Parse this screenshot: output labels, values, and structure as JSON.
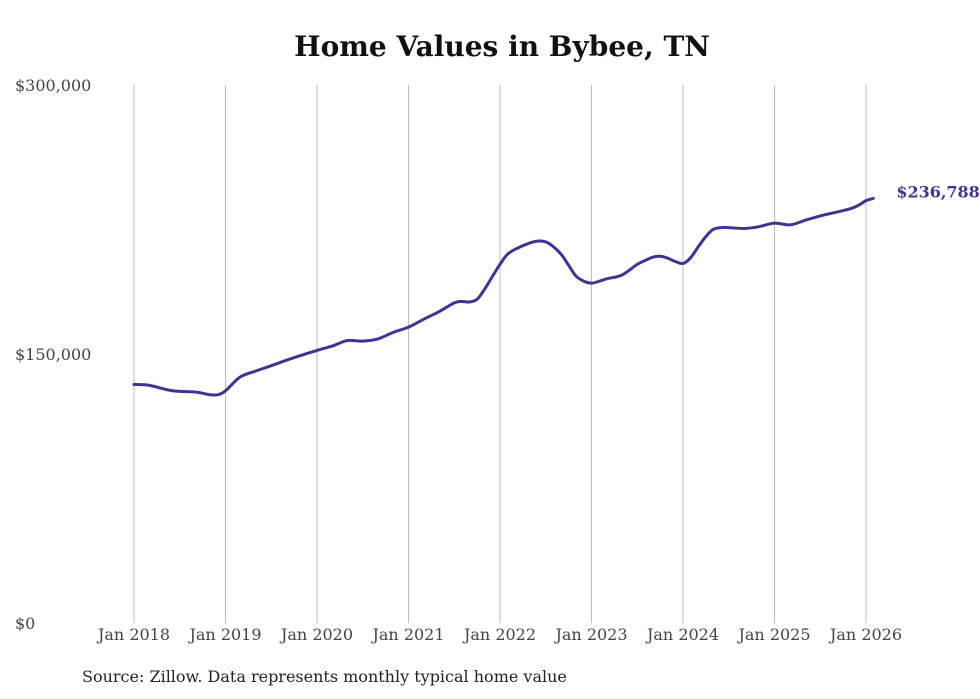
{
  "chart_data": {
    "type": "line",
    "title": "Home Values in Bybee, TN",
    "xlabel": "",
    "ylabel": "",
    "ylim": [
      0,
      300000
    ],
    "y_ticks": [
      {
        "value": 0,
        "label": "$0"
      },
      {
        "value": 150000,
        "label": "$150,000"
      },
      {
        "value": 300000,
        "label": "$300,000"
      }
    ],
    "x_ticks": [
      {
        "value": 2018.0,
        "label": "Jan 2018"
      },
      {
        "value": 2019.0,
        "label": "Jan 2019"
      },
      {
        "value": 2020.0,
        "label": "Jan 2020"
      },
      {
        "value": 2021.0,
        "label": "Jan 2021"
      },
      {
        "value": 2022.0,
        "label": "Jan 2022"
      },
      {
        "value": 2023.0,
        "label": "Jan 2023"
      },
      {
        "value": 2024.0,
        "label": "Jan 2024"
      },
      {
        "value": 2025.0,
        "label": "Jan 2025"
      },
      {
        "value": 2026.0,
        "label": "Jan 2026"
      }
    ],
    "xlim": [
      2018.0,
      2026.0
    ],
    "grid": "vertical",
    "series": [
      {
        "name": "Typical home value",
        "color": "#3d3590",
        "x": [
          2018.0,
          2018.17,
          2018.42,
          2018.67,
          2018.83,
          2018.92,
          2019.0,
          2019.08,
          2019.17,
          2019.33,
          2019.5,
          2019.75,
          2020.0,
          2020.17,
          2020.33,
          2020.5,
          2020.67,
          2020.83,
          2021.0,
          2021.17,
          2021.33,
          2021.5,
          2021.58,
          2021.67,
          2021.75,
          2021.83,
          2021.92,
          2022.0,
          2022.08,
          2022.17,
          2022.33,
          2022.42,
          2022.5,
          2022.58,
          2022.67,
          2022.75,
          2022.83,
          2022.92,
          2023.0,
          2023.08,
          2023.17,
          2023.33,
          2023.5,
          2023.58,
          2023.67,
          2023.75,
          2023.83,
          2023.92,
          2024.0,
          2024.08,
          2024.17,
          2024.25,
          2024.33,
          2024.42,
          2024.5,
          2024.67,
          2024.83,
          2025.0,
          2025.17,
          2025.33,
          2025.5,
          2025.67,
          2025.83,
          2025.92,
          2026.0,
          2026.08
        ],
        "values": [
          133000,
          132500,
          129500,
          128800,
          127300,
          127300,
          129500,
          133500,
          137500,
          140500,
          143500,
          148000,
          152000,
          154500,
          157500,
          157200,
          158500,
          162000,
          165000,
          169500,
          173500,
          178500,
          179300,
          179000,
          180500,
          186000,
          193500,
          200000,
          205500,
          208500,
          212000,
          213000,
          212500,
          210000,
          205500,
          199500,
          193500,
          190500,
          189500,
          190500,
          192000,
          194000,
          200000,
          202000,
          204000,
          204500,
          203500,
          201500,
          200500,
          203500,
          210000,
          215500,
          219500,
          220500,
          220500,
          220000,
          221000,
          223000,
          222000,
          224500,
          227000,
          229000,
          231000,
          233000,
          235500,
          236788
        ]
      }
    ],
    "annotations": [
      {
        "text": "$236,788",
        "x": 2026.08,
        "y": 236788,
        "color": "#3d3590"
      }
    ],
    "source": "Source: Zillow. Data represents monthly typical home value"
  }
}
